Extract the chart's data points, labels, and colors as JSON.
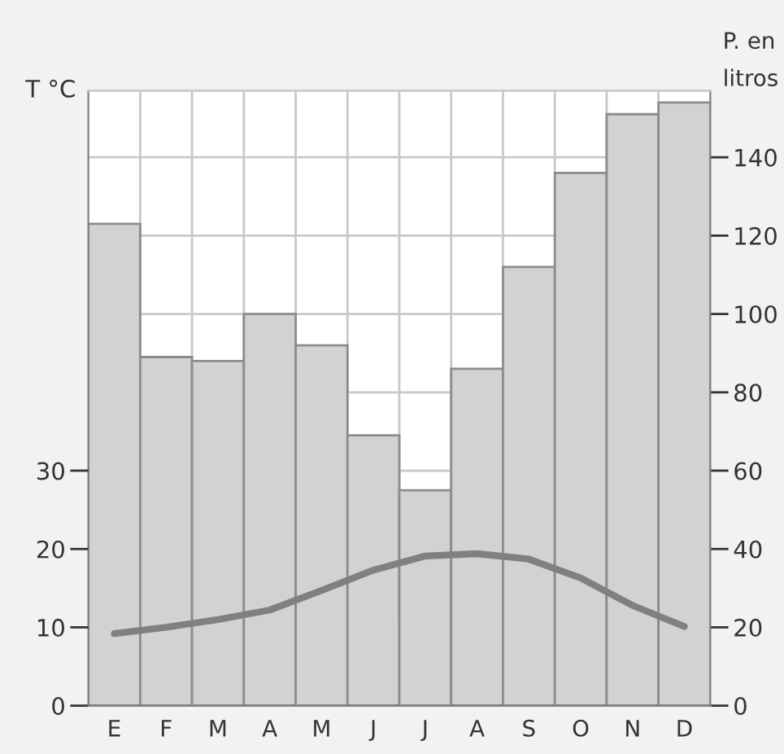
{
  "chart_data": {
    "type": "bar",
    "ylabel": "T °C",
    "y2label": "P. en\nlitros",
    "categories": [
      "E",
      "F",
      "M",
      "A",
      "M",
      "J",
      "J",
      "A",
      "S",
      "O",
      "N",
      "D"
    ],
    "series": [
      {
        "axis": "y2",
        "color": "#d1d2d4",
        "values": [
          123,
          89,
          88,
          100,
          92,
          69,
          55,
          86,
          112,
          136,
          151,
          154
        ]
      },
      {
        "type": "line",
        "axis": "y",
        "color": "#808080",
        "values": [
          9.2,
          10,
          11,
          12.2,
          14.7,
          17.3,
          19.1,
          19.4,
          18.7,
          16.3,
          12.8,
          10.1
        ]
      }
    ],
    "ylim": [
      0,
      78.5
    ],
    "yticks": [
      0,
      10,
      20,
      30
    ],
    "y2lim": [
      0,
      157
    ],
    "y2ticks": [
      0,
      20,
      40,
      60,
      80,
      100,
      120,
      140
    ],
    "grid": true,
    "marker": "none",
    "line_style": "solid"
  }
}
